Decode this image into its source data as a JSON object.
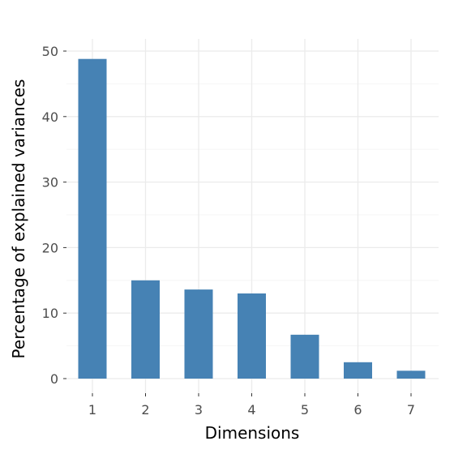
{
  "chart_data": {
    "type": "bar",
    "categories": [
      "1",
      "2",
      "3",
      "4",
      "5",
      "6",
      "7"
    ],
    "values": [
      48.8,
      15.0,
      13.6,
      13.0,
      6.7,
      2.5,
      1.2
    ],
    "xlabel": "Dimensions",
    "ylabel": "Percentage of explained variances",
    "ylim": [
      0,
      50
    ],
    "yticks": [
      0,
      10,
      20,
      30,
      40,
      50
    ],
    "bar_color": "#4682B4",
    "grid": true
  }
}
